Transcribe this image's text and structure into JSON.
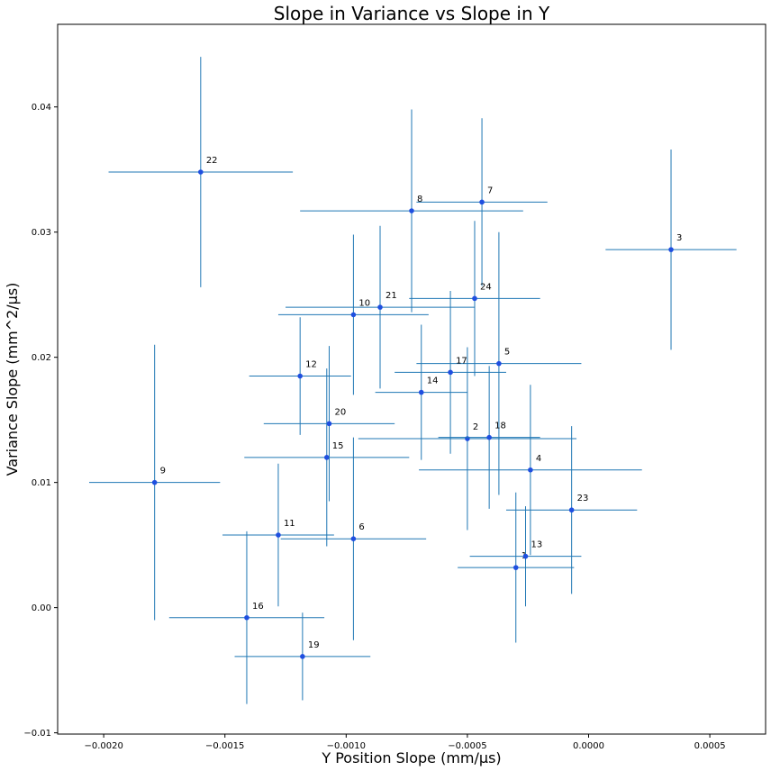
{
  "chart_data": {
    "type": "scatter",
    "title": "Slope in Variance vs Slope in Y",
    "xlabel": "Y Position Slope (mm/µs)",
    "ylabel": "Variance Slope (mm^2/µs)",
    "xlim": [
      -0.00219,
      0.00073
    ],
    "ylim": [
      -0.0101,
      0.0466
    ],
    "x_ticks": [
      -0.002,
      -0.0015,
      -0.001,
      -0.0005,
      0.0,
      0.0005
    ],
    "x_tick_labels": [
      "−0.0020",
      "−0.0015",
      "−0.0010",
      "−0.0005",
      "0.0000",
      "0.0005"
    ],
    "y_ticks": [
      -0.01,
      0.0,
      0.01,
      0.02,
      0.03,
      0.04
    ],
    "y_tick_labels": [
      "−0.01",
      "0.00",
      "0.01",
      "0.02",
      "0.03",
      "0.04"
    ],
    "grid": false,
    "colors": {
      "point": "#1f4fe0",
      "errorbar": "#1f77b4"
    },
    "points": [
      {
        "label": "1",
        "x": -0.0003,
        "y": 0.0032,
        "xerr": 0.00024,
        "yerr": 0.006
      },
      {
        "label": "2",
        "x": -0.0005,
        "y": 0.0135,
        "xerr": 0.00045,
        "yerr": 0.0073
      },
      {
        "label": "3",
        "x": 0.00034,
        "y": 0.0286,
        "xerr": 0.00027,
        "yerr": 0.008
      },
      {
        "label": "4",
        "x": -0.00024,
        "y": 0.011,
        "xerr": 0.00046,
        "yerr": 0.0068
      },
      {
        "label": "5",
        "x": -0.00037,
        "y": 0.0195,
        "xerr": 0.00034,
        "yerr": 0.0105
      },
      {
        "label": "6",
        "x": -0.00097,
        "y": 0.0055,
        "xerr": 0.0003,
        "yerr": 0.0081
      },
      {
        "label": "7",
        "x": -0.00044,
        "y": 0.0324,
        "xerr": 0.00027,
        "yerr": 0.0067
      },
      {
        "label": "8",
        "x": -0.00073,
        "y": 0.0317,
        "xerr": 0.00046,
        "yerr": 0.0081
      },
      {
        "label": "9",
        "x": -0.00179,
        "y": 0.01,
        "xerr": 0.00027,
        "yerr": 0.011
      },
      {
        "label": "10",
        "x": -0.00097,
        "y": 0.0234,
        "xerr": 0.00031,
        "yerr": 0.0064
      },
      {
        "label": "11",
        "x": -0.00128,
        "y": 0.0058,
        "xerr": 0.00023,
        "yerr": 0.0057
      },
      {
        "label": "12",
        "x": -0.00119,
        "y": 0.0185,
        "xerr": 0.00021,
        "yerr": 0.0047
      },
      {
        "label": "13",
        "x": -0.00026,
        "y": 0.0041,
        "xerr": 0.00023,
        "yerr": 0.004
      },
      {
        "label": "14",
        "x": -0.00069,
        "y": 0.0172,
        "xerr": 0.00019,
        "yerr": 0.0054
      },
      {
        "label": "15",
        "x": -0.00108,
        "y": 0.012,
        "xerr": 0.00034,
        "yerr": 0.0071
      },
      {
        "label": "16",
        "x": -0.00141,
        "y": -0.0008,
        "xerr": 0.00032,
        "yerr": 0.0069
      },
      {
        "label": "17",
        "x": -0.00057,
        "y": 0.0188,
        "xerr": 0.00023,
        "yerr": 0.0065
      },
      {
        "label": "18",
        "x": -0.00041,
        "y": 0.0136,
        "xerr": 0.00021,
        "yerr": 0.0057
      },
      {
        "label": "19",
        "x": -0.00118,
        "y": -0.0039,
        "xerr": 0.00028,
        "yerr": 0.0035
      },
      {
        "label": "20",
        "x": -0.00107,
        "y": 0.0147,
        "xerr": 0.00027,
        "yerr": 0.0062
      },
      {
        "label": "21",
        "x": -0.00086,
        "y": 0.024,
        "xerr": 0.00039,
        "yerr": 0.0065
      },
      {
        "label": "22",
        "x": -0.0016,
        "y": 0.0348,
        "xerr": 0.00038,
        "yerr": 0.0092
      },
      {
        "label": "23",
        "x": -7e-05,
        "y": 0.0078,
        "xerr": 0.00027,
        "yerr": 0.0067
      },
      {
        "label": "24",
        "x": -0.00047,
        "y": 0.0247,
        "xerr": 0.00027,
        "yerr": 0.0062
      }
    ]
  }
}
